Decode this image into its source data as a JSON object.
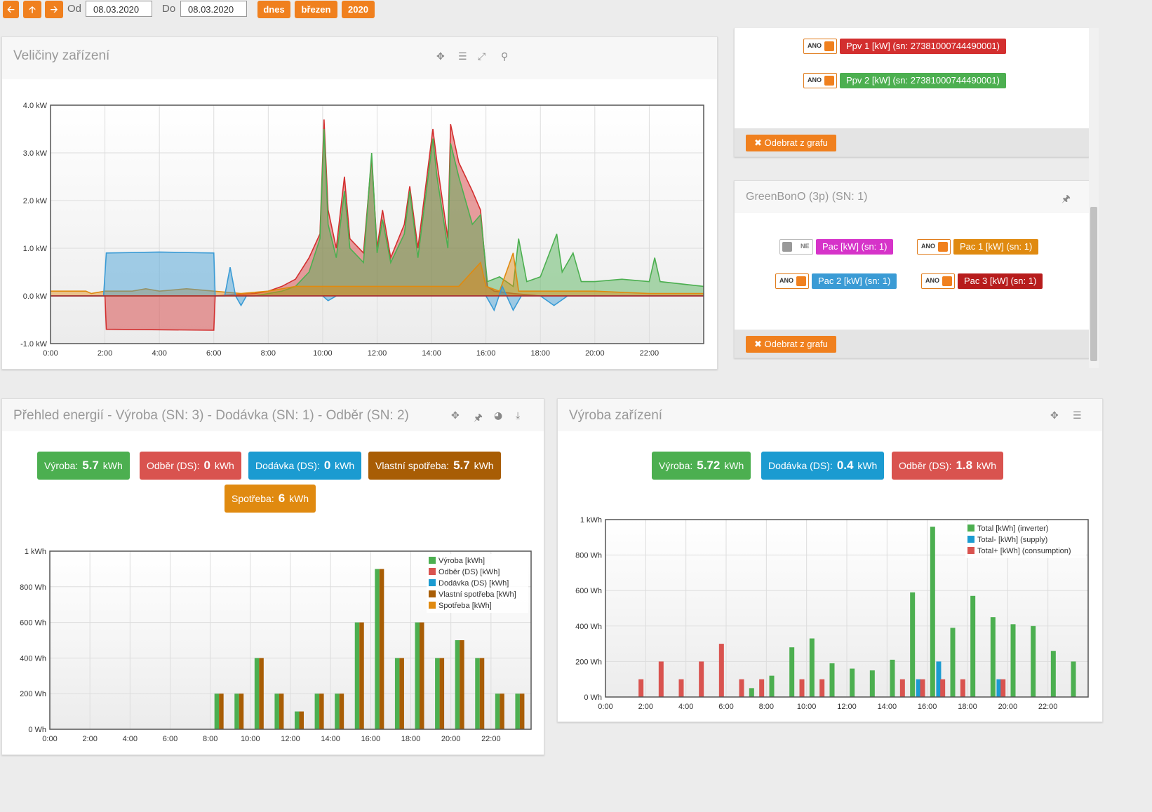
{
  "toolbar": {
    "from_label": "Od",
    "from_date": "08.03.2020",
    "to_label": "Do",
    "to_date": "08.03.2020",
    "today": "dnes",
    "month": "březen",
    "year": "2020"
  },
  "colors": {
    "accent": "#f0801e",
    "green": "#4caf50",
    "red": "#d9534f",
    "blue": "#3a9bd5",
    "brown": "#b5620a",
    "orange": "#e08a10"
  },
  "icons": {
    "back": "arrow-left-icon",
    "up": "arrow-up-icon",
    "forward": "arrow-right-icon",
    "move": "move-icon",
    "list": "list-icon",
    "expand": "expand-icon",
    "zoom": "zoom-icon",
    "pin": "pin-icon",
    "pie": "pie-chart-icon",
    "download": "download-icon",
    "close": "close-icon"
  },
  "device_panel": {
    "title": "Veličiny zařízení"
  },
  "ppv_panel": {
    "items": [
      {
        "state": "ANO",
        "label": "Ppv 1 [kW] (sn: 27381000744490001)",
        "color": "#d32f2f"
      },
      {
        "state": "ANO",
        "label": "Ppv 2 [kW] (sn: 27381000744490001)",
        "color": "#4caf50"
      }
    ],
    "remove": "Odebrat z grafu"
  },
  "green_panel": {
    "title": "GreenBonO (3p) (SN: 1)",
    "items": [
      {
        "state": "NE",
        "label": "Pac [kW] (sn: 1)",
        "color": "#d633c9"
      },
      {
        "state": "ANO",
        "label": "Pac 1 [kW] (sn: 1)",
        "color": "#e08a10"
      },
      {
        "state": "ANO",
        "label": "Pac 2 [kW] (sn: 1)",
        "color": "#3a9bd5"
      },
      {
        "state": "ANO",
        "label": "Pac 3 [kW] (sn: 1)",
        "color": "#b71c1c"
      }
    ],
    "remove": "Odebrat z grafu"
  },
  "energy_panel": {
    "title": "Přehled energií - Výroba (SN: 3) - Dodávka (SN: 1) - Odběr (SN: 2)",
    "badges": [
      {
        "label": "Výroba:",
        "value": "5.7",
        "unit": "kWh",
        "color": "#4caf50"
      },
      {
        "label": "Odběr (DS):",
        "value": "0",
        "unit": "kWh",
        "color": "#d9534f"
      },
      {
        "label": "Dodávka (DS):",
        "value": "0",
        "unit": "kWh",
        "color": "#1b9bd1"
      },
      {
        "label": "Vlastní spotřeba:",
        "value": "5.7",
        "unit": "kWh",
        "color": "#a85d05"
      },
      {
        "label": "Spotřeba:",
        "value": "6",
        "unit": "kWh",
        "color": "#e08a10"
      }
    ]
  },
  "production_panel": {
    "title": "Výroba zařízení",
    "badges": [
      {
        "label": "Výroba:",
        "value": "5.72",
        "unit": "kWh",
        "color": "#4caf50"
      },
      {
        "label": "Dodávka (DS):",
        "value": "0.4",
        "unit": "kWh",
        "color": "#1b9bd1"
      },
      {
        "label": "Odběr (DS):",
        "value": "1.8",
        "unit": "kWh",
        "color": "#d9534f"
      }
    ]
  },
  "chart_data": [
    {
      "type": "area",
      "x_ticks": [
        "0:00",
        "2:00",
        "4:00",
        "6:00",
        "8:00",
        "10:00",
        "12:00",
        "14:00",
        "16:00",
        "18:00",
        "20:00",
        "22:00"
      ],
      "y_ticks": [
        "4.0 kW",
        "3.0 kW",
        "2.0 kW",
        "1.0 kW",
        "0.0 kW",
        "-1.0 kW"
      ],
      "ylim": [
        -1,
        4
      ],
      "xlim": [
        0,
        24
      ],
      "grid": true,
      "series": [
        {
          "name": "Ppv 1 [kW] (sn: 27381000744490001)",
          "color": "#d32f2f",
          "points": [
            [
              0,
              0
            ],
            [
              2,
              0
            ],
            [
              2.05,
              -0.7
            ],
            [
              6,
              -0.72
            ],
            [
              6.05,
              0
            ],
            [
              7.5,
              0.05
            ],
            [
              8,
              0.1
            ],
            [
              8.5,
              0.2
            ],
            [
              9,
              0.35
            ],
            [
              9.5,
              0.8
            ],
            [
              9.9,
              1.3
            ],
            [
              10.05,
              3.7
            ],
            [
              10.2,
              1.8
            ],
            [
              10.5,
              1.0
            ],
            [
              10.8,
              2.5
            ],
            [
              11,
              1.2
            ],
            [
              11.5,
              0.9
            ],
            [
              11.8,
              2.9
            ],
            [
              12,
              1.0
            ],
            [
              12.2,
              1.8
            ],
            [
              12.5,
              0.8
            ],
            [
              13,
              1.5
            ],
            [
              13.2,
              2.3
            ],
            [
              13.5,
              1.0
            ],
            [
              14.05,
              3.5
            ],
            [
              14.2,
              2.8
            ],
            [
              14.6,
              1.2
            ],
            [
              14.7,
              3.6
            ],
            [
              15,
              2.8
            ],
            [
              15.5,
              2.2
            ],
            [
              15.8,
              1.8
            ],
            [
              16.05,
              0.2
            ],
            [
              16.3,
              0.1
            ],
            [
              17,
              0.05
            ],
            [
              18,
              0
            ],
            [
              24,
              0
            ]
          ]
        },
        {
          "name": "Ppv 2 [kW] (sn: 27381000744490001)",
          "color": "#4caf50",
          "points": [
            [
              0,
              0
            ],
            [
              7.5,
              0
            ],
            [
              8,
              0.05
            ],
            [
              8.5,
              0.1
            ],
            [
              9,
              0.2
            ],
            [
              9.5,
              0.5
            ],
            [
              9.9,
              1.2
            ],
            [
              10.05,
              3.5
            ],
            [
              10.2,
              1.5
            ],
            [
              10.5,
              0.8
            ],
            [
              10.8,
              2.2
            ],
            [
              11,
              1.0
            ],
            [
              11.5,
              0.7
            ],
            [
              11.8,
              3.0
            ],
            [
              12,
              0.9
            ],
            [
              12.2,
              1.6
            ],
            [
              12.5,
              0.7
            ],
            [
              13,
              1.3
            ],
            [
              13.2,
              2.2
            ],
            [
              13.5,
              0.8
            ],
            [
              14.05,
              3.3
            ],
            [
              14.2,
              2.5
            ],
            [
              14.6,
              1.0
            ],
            [
              14.7,
              3.2
            ],
            [
              15,
              2.5
            ],
            [
              15.5,
              1.5
            ],
            [
              15.8,
              1.7
            ],
            [
              16.05,
              0.3
            ],
            [
              16.5,
              0.4
            ],
            [
              17,
              0.2
            ],
            [
              17.2,
              1.2
            ],
            [
              17.5,
              0.3
            ],
            [
              18,
              0.4
            ],
            [
              18.6,
              1.3
            ],
            [
              18.8,
              0.5
            ],
            [
              19.2,
              0.9
            ],
            [
              19.5,
              0.3
            ],
            [
              20,
              0.3
            ],
            [
              21,
              0.35
            ],
            [
              22,
              0.3
            ],
            [
              22.2,
              0.8
            ],
            [
              22.4,
              0.3
            ],
            [
              24,
              0.2
            ]
          ]
        },
        {
          "name": "Pac 1 [kW] (sn: 1)",
          "color": "#e08a10",
          "points": [
            [
              0,
              0.1
            ],
            [
              1.3,
              0.1
            ],
            [
              1.5,
              0.05
            ],
            [
              2,
              0.1
            ],
            [
              3,
              0.1
            ],
            [
              3.5,
              0.15
            ],
            [
              4,
              0.1
            ],
            [
              5,
              0.15
            ],
            [
              6,
              0.1
            ],
            [
              7,
              0.05
            ],
            [
              8,
              0.1
            ],
            [
              9,
              0.2
            ],
            [
              10,
              0.2
            ],
            [
              11,
              0.2
            ],
            [
              12,
              0.2
            ],
            [
              13,
              0.2
            ],
            [
              14,
              0.2
            ],
            [
              15,
              0.2
            ],
            [
              15.8,
              0.7
            ],
            [
              16,
              0.2
            ],
            [
              16.5,
              0.1
            ],
            [
              17,
              0.9
            ],
            [
              17.2,
              0.1
            ],
            [
              18,
              0.1
            ],
            [
              20,
              0.1
            ],
            [
              22,
              0.05
            ],
            [
              24,
              0.05
            ]
          ]
        },
        {
          "name": "Pac 2 [kW] (sn: 1)",
          "color": "#3a9bd5",
          "points": [
            [
              0,
              0
            ],
            [
              1.95,
              0
            ],
            [
              2.05,
              0.9
            ],
            [
              4,
              0.92
            ],
            [
              6,
              0.9
            ],
            [
              6.05,
              0
            ],
            [
              6.4,
              0
            ],
            [
              6.6,
              0.6
            ],
            [
              6.8,
              0
            ],
            [
              7,
              -0.2
            ],
            [
              7.2,
              0
            ],
            [
              10,
              0
            ],
            [
              10.2,
              -0.1
            ],
            [
              10.5,
              0
            ],
            [
              16,
              0
            ],
            [
              16.3,
              -0.3
            ],
            [
              16.6,
              0.2
            ],
            [
              17,
              -0.3
            ],
            [
              17.3,
              0
            ],
            [
              18,
              0
            ],
            [
              18.5,
              -0.2
            ],
            [
              19,
              0
            ],
            [
              24,
              0
            ]
          ]
        },
        {
          "name": "Pac 3 [kW] (sn: 1)",
          "color": "#b71c1c",
          "points": [
            [
              0,
              0
            ],
            [
              24,
              0
            ]
          ]
        }
      ]
    },
    {
      "type": "bar",
      "x_ticks": [
        "0:00",
        "2:00",
        "4:00",
        "6:00",
        "8:00",
        "10:00",
        "12:00",
        "14:00",
        "16:00",
        "18:00",
        "20:00",
        "22:00"
      ],
      "y_ticks": [
        "1 kWh",
        "800 Wh",
        "600 Wh",
        "400 Wh",
        "200 Wh",
        "0 Wh"
      ],
      "ylim": [
        0,
        1000
      ],
      "legend": [
        "Výroba [kWh]",
        "Odběr (DS) [kWh]",
        "Dodávka (DS) [kWh]",
        "Vlastní spotřeba [kWh]",
        "Spotřeba [kWh]"
      ],
      "legend_colors": [
        "#4caf50",
        "#d9534f",
        "#1b9bd1",
        "#a85d05",
        "#e08a10"
      ],
      "hours": [
        8,
        9,
        10,
        11,
        12,
        13,
        14,
        15,
        16,
        17,
        18,
        19,
        20,
        21,
        22,
        23
      ],
      "series": [
        {
          "name": "Výroba [kWh]",
          "color": "#4caf50",
          "values": [
            200,
            200,
            400,
            200,
            100,
            200,
            200,
            600,
            900,
            400,
            600,
            400,
            500,
            400,
            200,
            200
          ]
        },
        {
          "name": "Vlastní spotřeba [kWh]",
          "color": "#a85d05",
          "values": [
            200,
            200,
            400,
            200,
            100,
            200,
            200,
            600,
            900,
            400,
            600,
            400,
            500,
            400,
            200,
            200
          ]
        }
      ]
    },
    {
      "type": "bar",
      "x_ticks": [
        "0:00",
        "2:00",
        "4:00",
        "6:00",
        "8:00",
        "10:00",
        "12:00",
        "14:00",
        "16:00",
        "18:00",
        "20:00",
        "22:00"
      ],
      "y_ticks": [
        "1 kWh",
        "800 Wh",
        "600 Wh",
        "400 Wh",
        "200 Wh",
        "0 Wh"
      ],
      "ylim": [
        0,
        1000
      ],
      "legend": [
        "Total [kWh] (inverter)",
        "Total- [kWh] (supply)",
        "Total+ [kWh] (consumption)"
      ],
      "legend_colors": [
        "#4caf50",
        "#1b9bd1",
        "#d9534f"
      ],
      "bars": [
        {
          "h": 1.75,
          "s": "c",
          "v": 100
        },
        {
          "h": 2.75,
          "s": "c",
          "v": 200
        },
        {
          "h": 3.75,
          "s": "c",
          "v": 100
        },
        {
          "h": 4.75,
          "s": "c",
          "v": 200
        },
        {
          "h": 5.75,
          "s": "c",
          "v": 300
        },
        {
          "h": 6.75,
          "s": "c",
          "v": 100
        },
        {
          "h": 7.25,
          "s": "i",
          "v": 50
        },
        {
          "h": 7.75,
          "s": "c",
          "v": 100
        },
        {
          "h": 8.25,
          "s": "i",
          "v": 120
        },
        {
          "h": 9.25,
          "s": "i",
          "v": 280
        },
        {
          "h": 9.75,
          "s": "c",
          "v": 100
        },
        {
          "h": 10.25,
          "s": "i",
          "v": 330
        },
        {
          "h": 10.75,
          "s": "c",
          "v": 100
        },
        {
          "h": 11.25,
          "s": "i",
          "v": 190
        },
        {
          "h": 12.25,
          "s": "i",
          "v": 160
        },
        {
          "h": 13.25,
          "s": "i",
          "v": 150
        },
        {
          "h": 14.25,
          "s": "i",
          "v": 210
        },
        {
          "h": 14.75,
          "s": "c",
          "v": 100
        },
        {
          "h": 15.25,
          "s": "i",
          "v": 590
        },
        {
          "h": 15.55,
          "s": "s",
          "v": 100
        },
        {
          "h": 15.75,
          "s": "c",
          "v": 100
        },
        {
          "h": 16.25,
          "s": "i",
          "v": 960
        },
        {
          "h": 16.55,
          "s": "s",
          "v": 200
        },
        {
          "h": 16.75,
          "s": "c",
          "v": 100
        },
        {
          "h": 17.25,
          "s": "i",
          "v": 390
        },
        {
          "h": 17.75,
          "s": "c",
          "v": 100
        },
        {
          "h": 18.25,
          "s": "i",
          "v": 570
        },
        {
          "h": 19.25,
          "s": "i",
          "v": 450
        },
        {
          "h": 19.55,
          "s": "s",
          "v": 100
        },
        {
          "h": 19.75,
          "s": "c",
          "v": 100
        },
        {
          "h": 20.25,
          "s": "i",
          "v": 410
        },
        {
          "h": 21.25,
          "s": "i",
          "v": 400
        },
        {
          "h": 22.25,
          "s": "i",
          "v": 260
        },
        {
          "h": 23.25,
          "s": "i",
          "v": 200
        }
      ]
    }
  ]
}
